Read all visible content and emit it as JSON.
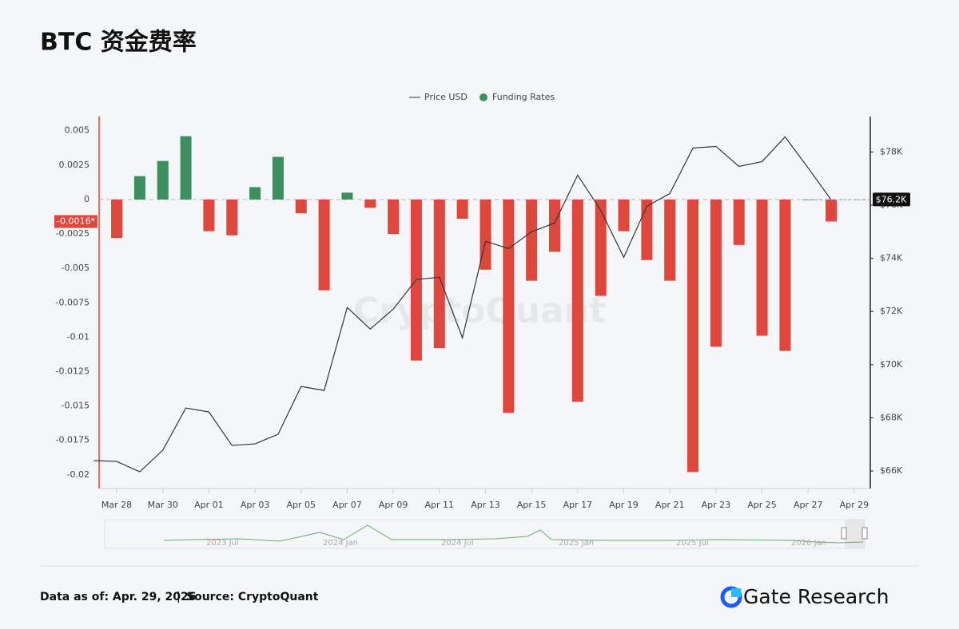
{
  "title": "BTC 资金费率",
  "chart_data": {
    "type": "combo",
    "categories": [
      null,
      "Mar 28",
      null,
      "Mar 30",
      null,
      "Apr 01",
      null,
      "Apr 03",
      null,
      "Apr 05",
      null,
      "Apr 07",
      null,
      "Apr 09",
      null,
      "Apr 11",
      null,
      "Apr 13",
      null,
      "Apr 15",
      null,
      "Apr 17",
      null,
      "Apr 19",
      null,
      "Apr 21",
      null,
      "Apr 23",
      null,
      "Apr 25",
      null,
      "Apr 27",
      null,
      "Apr 29"
    ],
    "series": [
      {
        "name": "Funding Rates",
        "type": "bar",
        "color": "#3d8f5e",
        "negative_color": "#e0473c",
        "values": [
          null,
          -0.0028,
          0.0017,
          0.0028,
          0.0046,
          -0.0023,
          -0.0026,
          0.0009,
          0.0031,
          -0.001,
          -0.0066,
          0.0005,
          -0.0006,
          -0.0025,
          -0.0117,
          -0.0108,
          -0.0014,
          -0.0051,
          -0.0155,
          -0.0059,
          -0.0038,
          -0.0147,
          -0.007,
          -0.0023,
          -0.0044,
          -0.0059,
          -0.0198,
          -0.0107,
          -0.0033,
          -0.0099,
          -0.011,
          0,
          -0.0016,
          null
        ]
      },
      {
        "name": "Price USD",
        "type": "line",
        "color": "#333333",
        "axis": "y2",
        "values": [
          66390,
          66360,
          65970,
          66780,
          68370,
          68220,
          66960,
          67020,
          67380,
          69180,
          69030,
          72150,
          71340,
          72090,
          73200,
          73290,
          71010,
          74640,
          74370,
          75000,
          75330,
          77130,
          75810,
          74040,
          75960,
          76440,
          78150,
          78210,
          77460,
          77640,
          78570,
          77400,
          76200,
          null
        ]
      }
    ],
    "ylim": [
      -0.021,
      0.006
    ],
    "yticks": [
      0.005,
      0.0025,
      0,
      -0.0025,
      -0.005,
      -0.0075,
      -0.01,
      -0.0125,
      -0.015,
      -0.0175,
      -0.02
    ],
    "y2lim": [
      65340,
      79320
    ],
    "y2ticks": [
      {
        "value": 66000,
        "label": "$66K"
      },
      {
        "value": 68000,
        "label": "$68K"
      },
      {
        "value": 70000,
        "label": "$70K"
      },
      {
        "value": 72000,
        "label": "$72K"
      },
      {
        "value": 74000,
        "label": "$74K"
      },
      {
        "value": 76000,
        "label": "$76K"
      },
      {
        "value": 78000,
        "label": "$78K"
      }
    ],
    "current_markers": {
      "y": {
        "value": -0.0016,
        "label": "-0.0016*"
      },
      "y2": {
        "value": 76200,
        "label": "$76.2K"
      }
    },
    "watermark": "CryptoQuant",
    "legend": "top",
    "navigator_labels": [
      "2023 Jul",
      "2024 Jan",
      "2024 Jul",
      "2025 Jan",
      "2025 Jul",
      "2026 Jan"
    ]
  },
  "footer": {
    "date": "Data as of: Apr. 29, 2026",
    "separator": "|",
    "source": "Source:  CryptoQuant",
    "brand": "Gate Research"
  }
}
